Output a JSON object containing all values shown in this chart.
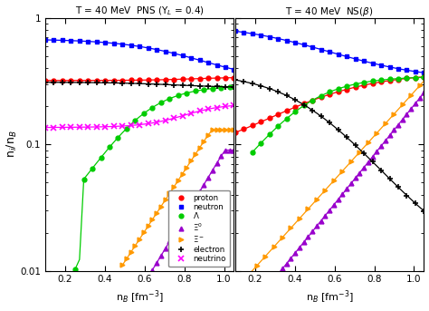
{
  "title_left": "T = 40 MeV  PNS (Y$_L$ = 0.4)",
  "title_right": "T = 40 MeV  NS($\\beta$)",
  "xlabel": "n$_B$ [fm$^{-3}$]",
  "ylabel": "n$_i$/n$_B$",
  "ylim_log": [
    -2,
    0
  ],
  "xlim": [
    0.1,
    1.05
  ],
  "colors": {
    "proton": "#ff0000",
    "neutron": "#0000ff",
    "Lambda": "#00cc00",
    "Xi0": "#9900cc",
    "XiMinus": "#ff9900",
    "electron": "#000000",
    "neutrino": "#ff00ff"
  },
  "bg_color": "#ffffff",
  "legend_labels": [
    "proton",
    "neutron",
    "Λ",
    "Ξ$^0$",
    "Ξ$^-$",
    "electron",
    "neutrino"
  ]
}
